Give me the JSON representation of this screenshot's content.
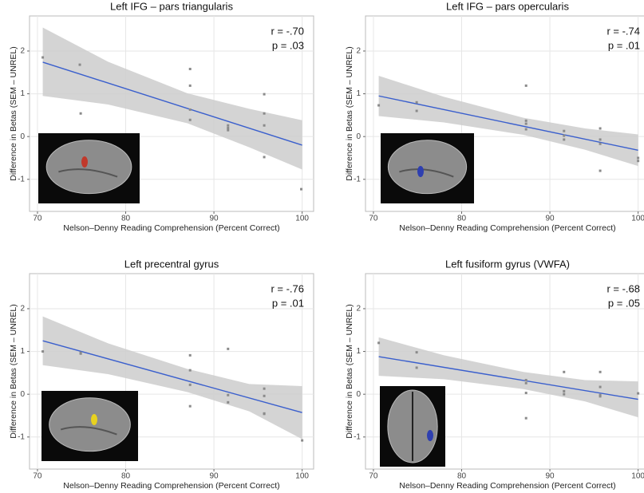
{
  "chart_data": [
    {
      "type": "scatter",
      "title": "Left IFG – pars triangularis",
      "x_label": "Nelson–Denny Reading Comprehension (Percent Correct)",
      "y_label": "Difference in Betas (SEM – UNREL)",
      "annotations": [
        "r = -.70",
        "p = .03"
      ],
      "x": [
        70.6,
        74.8,
        74.9,
        87.3,
        87.3,
        87.3,
        87.3,
        91.6,
        91.6,
        91.6,
        95.7,
        95.7,
        95.7,
        95.7,
        99.9
      ],
      "values": [
        1.85,
        1.68,
        0.54,
        1.58,
        1.19,
        0.63,
        0.39,
        0.26,
        0.2,
        0.15,
        0.99,
        0.54,
        0.26,
        -0.48,
        -1.23
      ],
      "fit": {
        "x": [
          70.6,
          100
        ],
        "values": [
          1.74,
          -0.2
        ]
      },
      "band": {
        "x": [
          70.6,
          78,
          87,
          94,
          100
        ],
        "upper": [
          2.55,
          1.75,
          1.01,
          0.65,
          0.38
        ],
        "lower": [
          0.95,
          0.75,
          0.31,
          -0.25,
          -0.77
        ]
      },
      "xlim": [
        69.1,
        101.3
      ],
      "ylim": [
        -1.75,
        2.82
      ],
      "xticks": [
        70,
        80,
        90,
        100
      ],
      "yticks": [
        -1,
        0,
        1,
        2
      ],
      "grid": true,
      "color": "#8a8a8a",
      "fit_color": "#3a5fcd",
      "band_color": "#cccccc"
    },
    {
      "type": "scatter",
      "title": "Left IFG – pars opercularis",
      "x_label": "Nelson–Denny Reading Comprehension (Percent Correct)",
      "y_label": "Difference in Betas (SEM – UNREL)",
      "annotations": [
        "r = -.74",
        "p = .01"
      ],
      "x": [
        70.6,
        74.9,
        74.9,
        87.3,
        87.3,
        87.3,
        87.3,
        91.6,
        91.6,
        91.6,
        95.7,
        95.7,
        95.7,
        95.7,
        100,
        100
      ],
      "values": [
        0.73,
        0.8,
        0.6,
        1.19,
        0.37,
        0.3,
        0.17,
        0.13,
        0.02,
        -0.07,
        0.19,
        -0.07,
        -0.17,
        -0.8,
        -0.5,
        -0.57
      ],
      "fit": {
        "x": [
          70.6,
          100
        ],
        "values": [
          0.95,
          -0.32
        ]
      },
      "band": {
        "x": [
          70.6,
          78,
          87,
          94,
          100
        ],
        "upper": [
          1.42,
          0.93,
          0.44,
          0.19,
          0.05
        ],
        "lower": [
          0.48,
          0.33,
          0.04,
          -0.31,
          -0.69
        ]
      },
      "xlim": [
        69.1,
        101.3
      ],
      "ylim": [
        -1.75,
        2.82
      ],
      "xticks": [
        70,
        80,
        90,
        100
      ],
      "yticks": [
        -1,
        0,
        1,
        2
      ],
      "grid": true,
      "color": "#8a8a8a",
      "fit_color": "#3a5fcd",
      "band_color": "#cccccc"
    },
    {
      "type": "scatter",
      "title": "Left precentral gyrus",
      "x_label": "Nelson–Denny Reading Comprehension (Percent Correct)",
      "y_label": "Difference in Betas (SEM – UNREL)",
      "annotations": [
        "r = -.76",
        "p = .01"
      ],
      "x": [
        70.6,
        74.9,
        74.9,
        87.3,
        87.3,
        87.3,
        87.3,
        91.6,
        91.6,
        91.6,
        95.7,
        95.7,
        95.7,
        95.7,
        100
      ],
      "values": [
        1.0,
        0.97,
        0.95,
        0.91,
        0.56,
        0.22,
        -0.28,
        1.06,
        -0.02,
        -0.19,
        0.13,
        -0.04,
        -0.45,
        -0.46,
        -1.08
      ],
      "fit": {
        "x": [
          70.6,
          100
        ],
        "values": [
          1.25,
          -0.43
        ]
      },
      "band": {
        "x": [
          70.6,
          78,
          87,
          94,
          100
        ],
        "upper": [
          1.82,
          1.19,
          0.59,
          0.24,
          0.19
        ],
        "lower": [
          0.68,
          0.47,
          0.05,
          -0.4,
          -1.05
        ]
      },
      "xlim": [
        69.1,
        101.3
      ],
      "ylim": [
        -1.75,
        2.82
      ],
      "xticks": [
        70,
        80,
        90,
        100
      ],
      "yticks": [
        -1,
        0,
        1,
        2
      ],
      "grid": true,
      "color": "#8a8a8a",
      "fit_color": "#3a5fcd",
      "band_color": "#cccccc"
    },
    {
      "type": "scatter",
      "title": "Left fusiform gyrus (VWFA)",
      "x_label": "Nelson–Denny Reading Comprehension (Percent Correct)",
      "y_label": "Difference in Betas (SEM – UNREL)",
      "annotations": [
        "r = -.68",
        "p = .05"
      ],
      "x": [
        70.6,
        74.9,
        74.9,
        87.3,
        87.3,
        87.3,
        87.3,
        91.6,
        91.6,
        91.6,
        95.7,
        95.7,
        95.7,
        95.7,
        100
      ],
      "values": [
        1.2,
        0.98,
        0.62,
        0.33,
        0.26,
        0.03,
        -0.56,
        0.52,
        0.07,
        0.0,
        0.52,
        0.17,
        -0.02,
        -0.05,
        0.02
      ],
      "fit": {
        "x": [
          70.6,
          100
        ],
        "values": [
          0.88,
          -0.12
        ]
      },
      "band": {
        "x": [
          70.6,
          78,
          87,
          94,
          100
        ],
        "upper": [
          1.33,
          0.91,
          0.52,
          0.33,
          0.3
        ],
        "lower": [
          0.43,
          0.35,
          0.12,
          -0.17,
          -0.54
        ]
      },
      "xlim": [
        69.1,
        101.3
      ],
      "ylim": [
        -1.75,
        2.82
      ],
      "xticks": [
        70,
        80,
        90,
        100
      ],
      "yticks": [
        -1,
        0,
        1,
        2
      ],
      "grid": true,
      "color": "#8a8a8a",
      "fit_color": "#3a5fcd",
      "band_color": "#cccccc"
    }
  ]
}
